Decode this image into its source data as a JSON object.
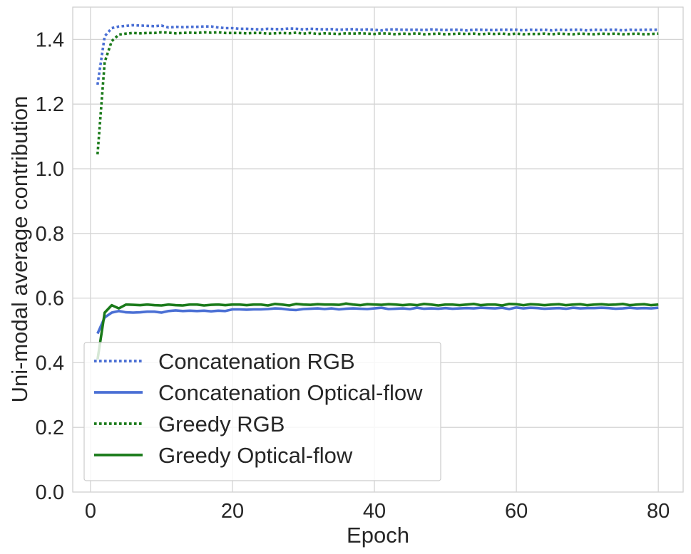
{
  "chart_data": {
    "type": "line",
    "title": "",
    "xlabel": "Epoch",
    "ylabel": "Uni-modal average contribution",
    "xlim": [
      -2.5,
      83.5
    ],
    "ylim": [
      0.0,
      1.5
    ],
    "xticks": [
      0,
      20,
      40,
      60,
      80
    ],
    "xtick_labels": [
      "0",
      "20",
      "40",
      "60",
      "80"
    ],
    "yticks": [
      0.0,
      0.2,
      0.4,
      0.6,
      0.8,
      1.0,
      1.2,
      1.4
    ],
    "ytick_labels": [
      "0.0",
      "0.2",
      "0.4",
      "0.6",
      "0.8",
      "1.0",
      "1.2",
      "1.4"
    ],
    "grid": true,
    "legend_position": "lower-left",
    "series": [
      {
        "name": "Concatenation RGB",
        "color": "#4a6fd4",
        "style": "dotted",
        "x": [
          1,
          2,
          3,
          4,
          5,
          6,
          7,
          8,
          9,
          10,
          11,
          12,
          13,
          14,
          15,
          16,
          17,
          18,
          19,
          20,
          21,
          22,
          23,
          24,
          25,
          26,
          27,
          28,
          29,
          30,
          31,
          32,
          33,
          34,
          35,
          36,
          37,
          38,
          39,
          40,
          41,
          42,
          43,
          44,
          45,
          46,
          47,
          48,
          49,
          50,
          51,
          52,
          53,
          54,
          55,
          56,
          57,
          58,
          59,
          60,
          61,
          62,
          63,
          64,
          65,
          66,
          67,
          68,
          69,
          70,
          71,
          72,
          73,
          74,
          75,
          76,
          77,
          78,
          79,
          80
        ],
        "values": [
          1.26,
          1.41,
          1.435,
          1.44,
          1.442,
          1.444,
          1.443,
          1.442,
          1.441,
          1.443,
          1.437,
          1.439,
          1.438,
          1.439,
          1.439,
          1.44,
          1.44,
          1.437,
          1.435,
          1.435,
          1.433,
          1.433,
          1.432,
          1.431,
          1.433,
          1.432,
          1.432,
          1.434,
          1.433,
          1.431,
          1.433,
          1.432,
          1.431,
          1.432,
          1.43,
          1.431,
          1.432,
          1.43,
          1.431,
          1.43,
          1.428,
          1.431,
          1.431,
          1.43,
          1.43,
          1.43,
          1.429,
          1.431,
          1.43,
          1.429,
          1.43,
          1.43,
          1.428,
          1.43,
          1.43,
          1.429,
          1.429,
          1.43,
          1.43,
          1.43,
          1.428,
          1.43,
          1.429,
          1.43,
          1.428,
          1.43,
          1.429,
          1.43,
          1.43,
          1.428,
          1.43,
          1.429,
          1.43,
          1.43,
          1.428,
          1.43,
          1.429,
          1.43,
          1.43,
          1.43
        ]
      },
      {
        "name": "Concatenation Optical-flow",
        "color": "#4a6fd4",
        "style": "solid",
        "x": [
          1,
          2,
          3,
          4,
          5,
          6,
          7,
          8,
          9,
          10,
          11,
          12,
          13,
          14,
          15,
          16,
          17,
          18,
          19,
          20,
          21,
          22,
          23,
          24,
          25,
          26,
          27,
          28,
          29,
          30,
          31,
          32,
          33,
          34,
          35,
          36,
          37,
          38,
          39,
          40,
          41,
          42,
          43,
          44,
          45,
          46,
          47,
          48,
          49,
          50,
          51,
          52,
          53,
          54,
          55,
          56,
          57,
          58,
          59,
          60,
          61,
          62,
          63,
          64,
          65,
          66,
          67,
          68,
          69,
          70,
          71,
          72,
          73,
          74,
          75,
          76,
          77,
          78,
          79,
          80
        ],
        "values": [
          0.49,
          0.54,
          0.555,
          0.56,
          0.556,
          0.555,
          0.556,
          0.558,
          0.558,
          0.555,
          0.56,
          0.562,
          0.56,
          0.561,
          0.56,
          0.561,
          0.559,
          0.561,
          0.56,
          0.565,
          0.565,
          0.564,
          0.565,
          0.565,
          0.566,
          0.568,
          0.567,
          0.564,
          0.563,
          0.566,
          0.567,
          0.568,
          0.566,
          0.568,
          0.565,
          0.567,
          0.568,
          0.567,
          0.566,
          0.568,
          0.57,
          0.566,
          0.567,
          0.568,
          0.566,
          0.57,
          0.567,
          0.568,
          0.567,
          0.569,
          0.567,
          0.568,
          0.569,
          0.568,
          0.57,
          0.569,
          0.568,
          0.57,
          0.566,
          0.571,
          0.568,
          0.57,
          0.569,
          0.567,
          0.568,
          0.569,
          0.567,
          0.57,
          0.568,
          0.569,
          0.569,
          0.57,
          0.569,
          0.567,
          0.568,
          0.57,
          0.568,
          0.569,
          0.568,
          0.57
        ]
      },
      {
        "name": "Greedy RGB",
        "color": "#1a7a1a",
        "style": "dotted",
        "x": [
          1,
          2,
          3,
          4,
          5,
          6,
          7,
          8,
          9,
          10,
          11,
          12,
          13,
          14,
          15,
          16,
          17,
          18,
          19,
          20,
          21,
          22,
          23,
          24,
          25,
          26,
          27,
          28,
          29,
          30,
          31,
          32,
          33,
          34,
          35,
          36,
          37,
          38,
          39,
          40,
          41,
          42,
          43,
          44,
          45,
          46,
          47,
          48,
          49,
          50,
          51,
          52,
          53,
          54,
          55,
          56,
          57,
          58,
          59,
          60,
          61,
          62,
          63,
          64,
          65,
          66,
          67,
          68,
          69,
          70,
          71,
          72,
          73,
          74,
          75,
          76,
          77,
          78,
          79,
          80
        ],
        "values": [
          1.045,
          1.33,
          1.395,
          1.415,
          1.418,
          1.42,
          1.419,
          1.42,
          1.42,
          1.422,
          1.421,
          1.419,
          1.42,
          1.421,
          1.42,
          1.422,
          1.421,
          1.422,
          1.42,
          1.42,
          1.42,
          1.419,
          1.42,
          1.42,
          1.418,
          1.419,
          1.42,
          1.419,
          1.421,
          1.418,
          1.42,
          1.417,
          1.419,
          1.418,
          1.417,
          1.419,
          1.418,
          1.419,
          1.418,
          1.417,
          1.419,
          1.418,
          1.416,
          1.418,
          1.417,
          1.419,
          1.416,
          1.417,
          1.418,
          1.416,
          1.417,
          1.418,
          1.417,
          1.418,
          1.416,
          1.418,
          1.417,
          1.418,
          1.416,
          1.418,
          1.416,
          1.417,
          1.417,
          1.418,
          1.416,
          1.418,
          1.417,
          1.416,
          1.418,
          1.417,
          1.416,
          1.418,
          1.417,
          1.418,
          1.416,
          1.417,
          1.418,
          1.416,
          1.417,
          1.418
        ]
      },
      {
        "name": "Greedy Optical-flow",
        "color": "#1a7a1a",
        "style": "solid",
        "x": [
          1,
          2,
          3,
          4,
          5,
          6,
          7,
          8,
          9,
          10,
          11,
          12,
          13,
          14,
          15,
          16,
          17,
          18,
          19,
          20,
          21,
          22,
          23,
          24,
          25,
          26,
          27,
          28,
          29,
          30,
          31,
          32,
          33,
          34,
          35,
          36,
          37,
          38,
          39,
          40,
          41,
          42,
          43,
          44,
          45,
          46,
          47,
          48,
          49,
          50,
          51,
          52,
          53,
          54,
          55,
          56,
          57,
          58,
          59,
          60,
          61,
          62,
          63,
          64,
          65,
          66,
          67,
          68,
          69,
          70,
          71,
          72,
          73,
          74,
          75,
          76,
          77,
          78,
          79,
          80
        ],
        "values": [
          0.41,
          0.555,
          0.578,
          0.568,
          0.58,
          0.579,
          0.578,
          0.58,
          0.578,
          0.577,
          0.58,
          0.578,
          0.577,
          0.58,
          0.58,
          0.577,
          0.579,
          0.58,
          0.578,
          0.58,
          0.58,
          0.578,
          0.58,
          0.58,
          0.577,
          0.582,
          0.58,
          0.577,
          0.582,
          0.58,
          0.579,
          0.581,
          0.58,
          0.58,
          0.579,
          0.583,
          0.58,
          0.578,
          0.581,
          0.58,
          0.579,
          0.581,
          0.58,
          0.578,
          0.58,
          0.578,
          0.582,
          0.58,
          0.577,
          0.58,
          0.58,
          0.578,
          0.58,
          0.582,
          0.578,
          0.58,
          0.58,
          0.577,
          0.582,
          0.581,
          0.578,
          0.581,
          0.58,
          0.578,
          0.58,
          0.581,
          0.578,
          0.58,
          0.581,
          0.578,
          0.58,
          0.581,
          0.579,
          0.58,
          0.582,
          0.578,
          0.58,
          0.581,
          0.578,
          0.58
        ]
      }
    ]
  }
}
